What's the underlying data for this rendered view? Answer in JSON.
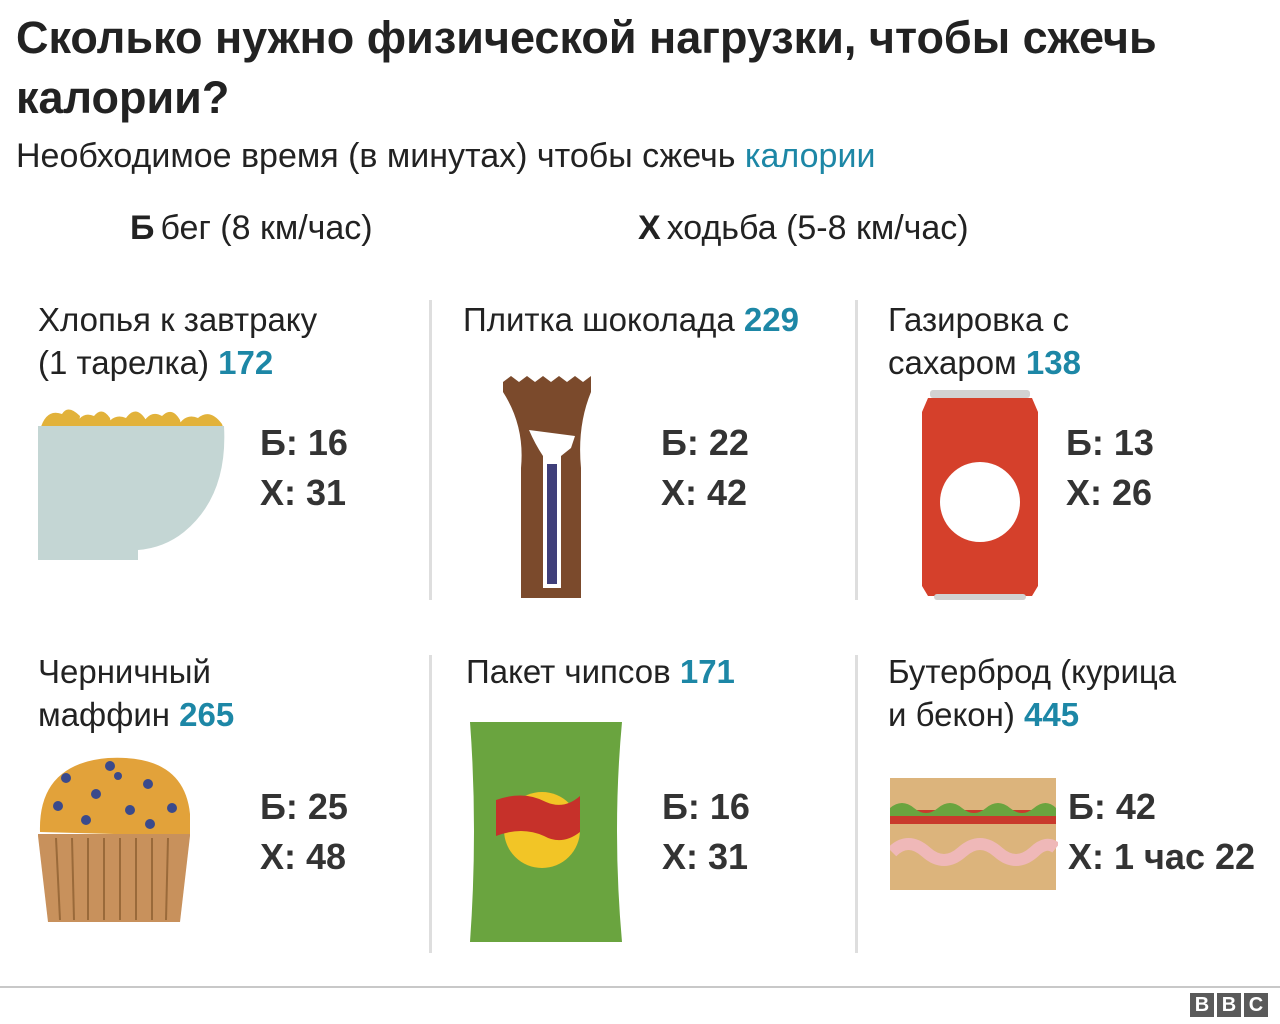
{
  "title": "Сколько нужно физической нагрузки, чтобы сжечь калории?",
  "subtitle": {
    "text": "Необходимое время (в минутах) чтобы сжечь",
    "accent": "калории"
  },
  "legend": {
    "run": {
      "key": "Б",
      "label": "бег (8 км/час)"
    },
    "walk": {
      "key": "Х",
      "label": "ходьба (5-8 км/час)"
    }
  },
  "items": [
    {
      "name_line1": "Хлопья к завтраку",
      "name_line2": "(1 тарелка)",
      "calories": "172",
      "run": "Б: 16",
      "walk": "Х: 31"
    },
    {
      "name_line1": "Плитка шоколада",
      "name_line2": "",
      "calories": "229",
      "run": "Б: 22",
      "walk": "Х: 42"
    },
    {
      "name_line1": "Газировка с",
      "name_line2": "сахаром",
      "calories": "138",
      "run": "Б: 13",
      "walk": "Х: 26"
    },
    {
      "name_line1": "Черничный",
      "name_line2": "маффин",
      "calories": "265",
      "run": "Б: 25",
      "walk": "Х: 48"
    },
    {
      "name_line1": "Пакет чипсов",
      "name_line2": "",
      "calories": "171",
      "run": "Б: 16",
      "walk": "Х: 31"
    },
    {
      "name_line1": "Бутерброд (курица",
      "name_line2": "и бекон)",
      "calories": "445",
      "run": "Б: 42",
      "walk": "Х: 1 час 22"
    }
  ],
  "logo": {
    "letters": [
      "B",
      "B",
      "C"
    ]
  },
  "colors": {
    "accent": "#1d87a6",
    "text": "#222222",
    "divider": "#dedede"
  }
}
